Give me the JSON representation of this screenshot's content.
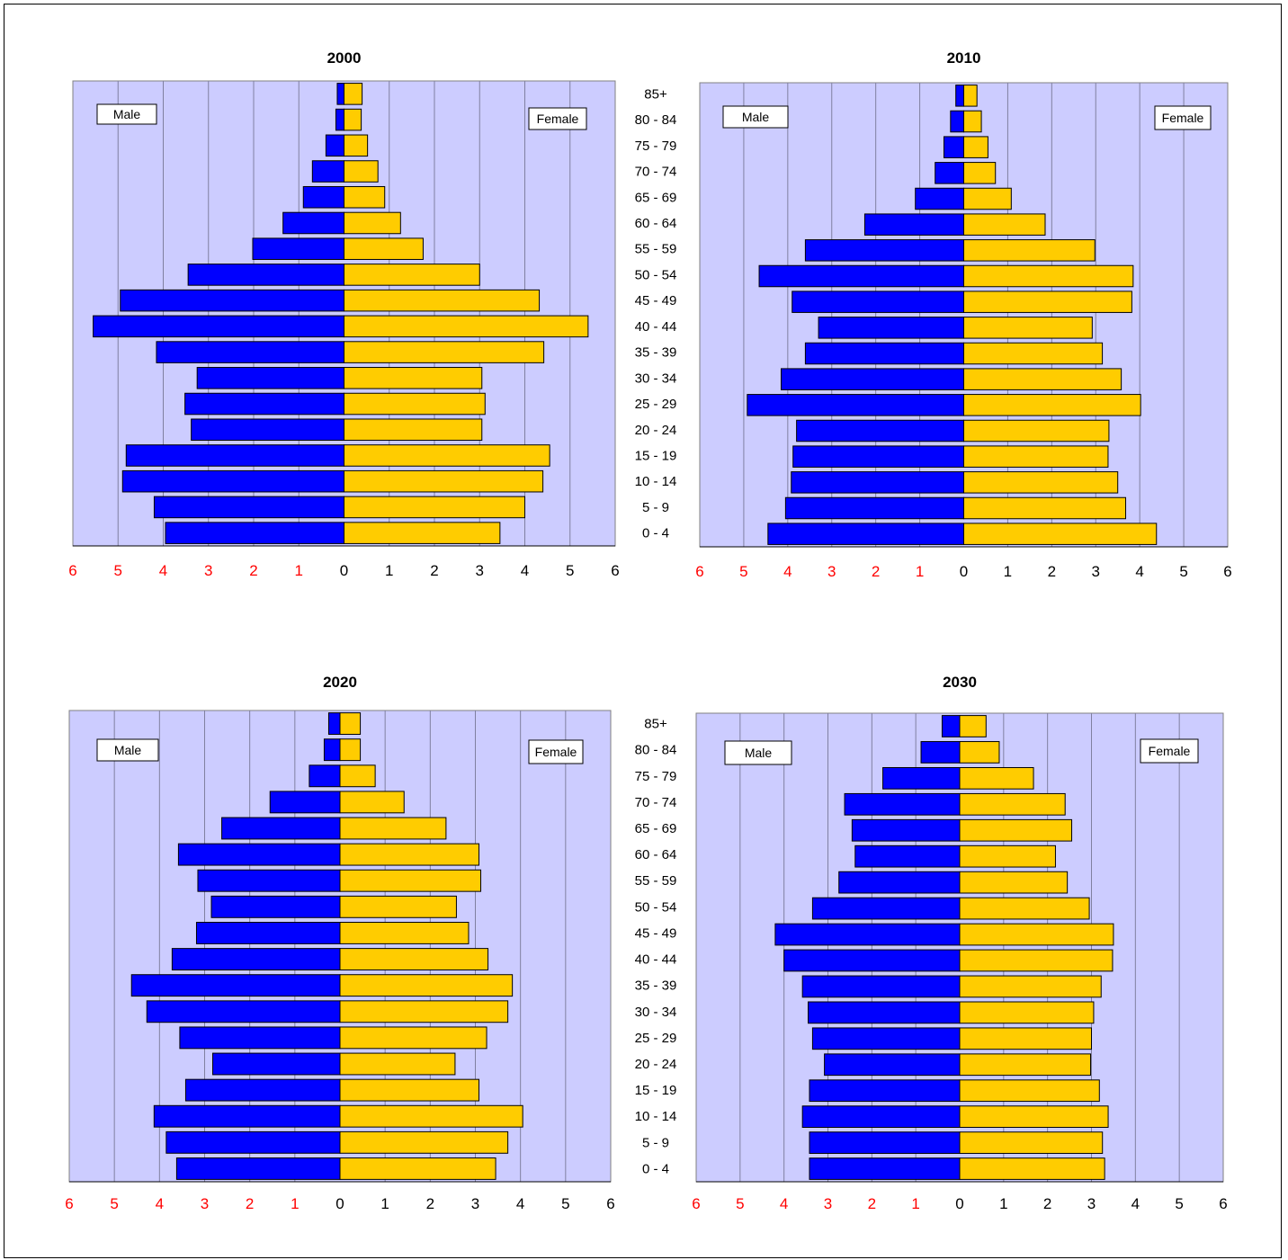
{
  "colors": {
    "male": "#0000FF",
    "female": "#FFCC00",
    "plot_bg": "#CCCCFF",
    "left_ticks": "#FF0000",
    "right_ticks": "#000000"
  },
  "chart_data": [
    {
      "type": "bar",
      "orientation": "horizontal-population-pyramid",
      "title": "2000",
      "categories": [
        "0 - 4",
        "5 - 9",
        "10 - 14",
        "15 - 19",
        "20 - 24",
        "25 - 29",
        "30 - 34",
        "35 - 39",
        "40 - 44",
        "45 - 49",
        "50 - 54",
        "55 - 59",
        "60 - 64",
        "65 - 69",
        "70 - 74",
        "75 - 79",
        "80 - 84",
        "85+"
      ],
      "series": [
        {
          "name": "Male",
          "values": [
            3.95,
            4.2,
            4.9,
            4.82,
            3.38,
            3.52,
            3.25,
            4.15,
            5.55,
            4.95,
            3.45,
            2.02,
            1.35,
            0.9,
            0.7,
            0.4,
            0.18,
            0.15
          ]
        },
        {
          "name": "Female",
          "values": [
            3.45,
            4.0,
            4.4,
            4.55,
            3.05,
            3.12,
            3.05,
            4.42,
            5.4,
            4.32,
            3.0,
            1.75,
            1.25,
            0.9,
            0.75,
            0.52,
            0.38,
            0.4
          ]
        }
      ],
      "xlim": [
        0,
        6
      ],
      "ticks": [
        "6",
        "5",
        "4",
        "3",
        "2",
        "1",
        "0",
        "1",
        "2",
        "3",
        "4",
        "5",
        "6"
      ],
      "legend": {
        "male": "Male",
        "female": "Female"
      }
    },
    {
      "type": "bar",
      "orientation": "horizontal-population-pyramid",
      "title": "2010",
      "categories": [
        "0 - 4",
        "5 - 9",
        "10 - 14",
        "15 - 19",
        "20 - 24",
        "25 - 29",
        "30 - 34",
        "35 - 39",
        "40 - 44",
        "45 - 49",
        "50 - 54",
        "55 - 59",
        "60 - 64",
        "65 - 69",
        "70 - 74",
        "75 - 79",
        "80 - 84",
        "85+"
      ],
      "series": [
        {
          "name": "Male",
          "values": [
            4.45,
            4.05,
            3.92,
            3.88,
            3.8,
            4.92,
            4.15,
            3.6,
            3.3,
            3.9,
            4.65,
            3.6,
            2.25,
            1.1,
            0.65,
            0.45,
            0.3,
            0.18
          ]
        },
        {
          "name": "Female",
          "values": [
            4.38,
            3.68,
            3.5,
            3.28,
            3.3,
            4.02,
            3.58,
            3.15,
            2.92,
            3.82,
            3.85,
            2.98,
            1.85,
            1.08,
            0.72,
            0.55,
            0.4,
            0.3
          ]
        }
      ],
      "xlim": [
        0,
        6
      ],
      "ticks": [
        "6",
        "5",
        "4",
        "3",
        "2",
        "1",
        "0",
        "1",
        "2",
        "3",
        "4",
        "5",
        "6"
      ],
      "legend": {
        "male": "Male",
        "female": "Female"
      }
    },
    {
      "type": "bar",
      "orientation": "horizontal-population-pyramid",
      "title": "2020",
      "categories": [
        "0 - 4",
        "5 - 9",
        "10 - 14",
        "15 - 19",
        "20 - 24",
        "25 - 29",
        "30 - 34",
        "35 - 39",
        "40 - 44",
        "45 - 49",
        "50 - 54",
        "55 - 59",
        "60 - 64",
        "65 - 69",
        "70 - 74",
        "75 - 79",
        "80 - 84",
        "85+"
      ],
      "series": [
        {
          "name": "Male",
          "values": [
            3.62,
            3.85,
            4.12,
            3.42,
            2.82,
            3.55,
            4.28,
            4.62,
            3.72,
            3.18,
            2.85,
            3.15,
            3.58,
            2.62,
            1.55,
            0.68,
            0.35,
            0.25
          ]
        },
        {
          "name": "Female",
          "values": [
            3.45,
            3.72,
            4.05,
            3.08,
            2.55,
            3.25,
            3.72,
            3.82,
            3.28,
            2.85,
            2.58,
            3.12,
            3.08,
            2.35,
            1.42,
            0.78,
            0.45,
            0.45
          ]
        }
      ],
      "xlim": [
        0,
        6
      ],
      "ticks": [
        "6",
        "5",
        "4",
        "3",
        "2",
        "1",
        "0",
        "1",
        "2",
        "3",
        "4",
        "5",
        "6"
      ],
      "legend": {
        "male": "Male",
        "female": "Female"
      }
    },
    {
      "type": "bar",
      "orientation": "horizontal-population-pyramid",
      "title": "2030",
      "categories": [
        "0 - 4",
        "5 - 9",
        "10 - 14",
        "15 - 19",
        "20 - 24",
        "25 - 29",
        "30 - 34",
        "35 - 39",
        "40 - 44",
        "45 - 49",
        "50 - 54",
        "55 - 59",
        "60 - 64",
        "65 - 69",
        "70 - 74",
        "75 - 79",
        "80 - 84",
        "85+"
      ],
      "series": [
        {
          "name": "Male",
          "values": [
            3.42,
            3.42,
            3.58,
            3.42,
            3.08,
            3.35,
            3.45,
            3.58,
            4.0,
            4.2,
            3.35,
            2.75,
            2.38,
            2.45,
            2.62,
            1.75,
            0.88,
            0.4
          ]
        },
        {
          "name": "Female",
          "values": [
            3.3,
            3.25,
            3.38,
            3.18,
            2.98,
            3.0,
            3.05,
            3.22,
            3.48,
            3.5,
            2.95,
            2.45,
            2.18,
            2.55,
            2.4,
            1.68,
            0.9,
            0.6
          ]
        }
      ],
      "xlim": [
        0,
        6
      ],
      "ticks": [
        "6",
        "5",
        "4",
        "3",
        "2",
        "1",
        "0",
        "1",
        "2",
        "3",
        "4",
        "5",
        "6"
      ],
      "legend": {
        "male": "Male",
        "female": "Female"
      }
    }
  ]
}
